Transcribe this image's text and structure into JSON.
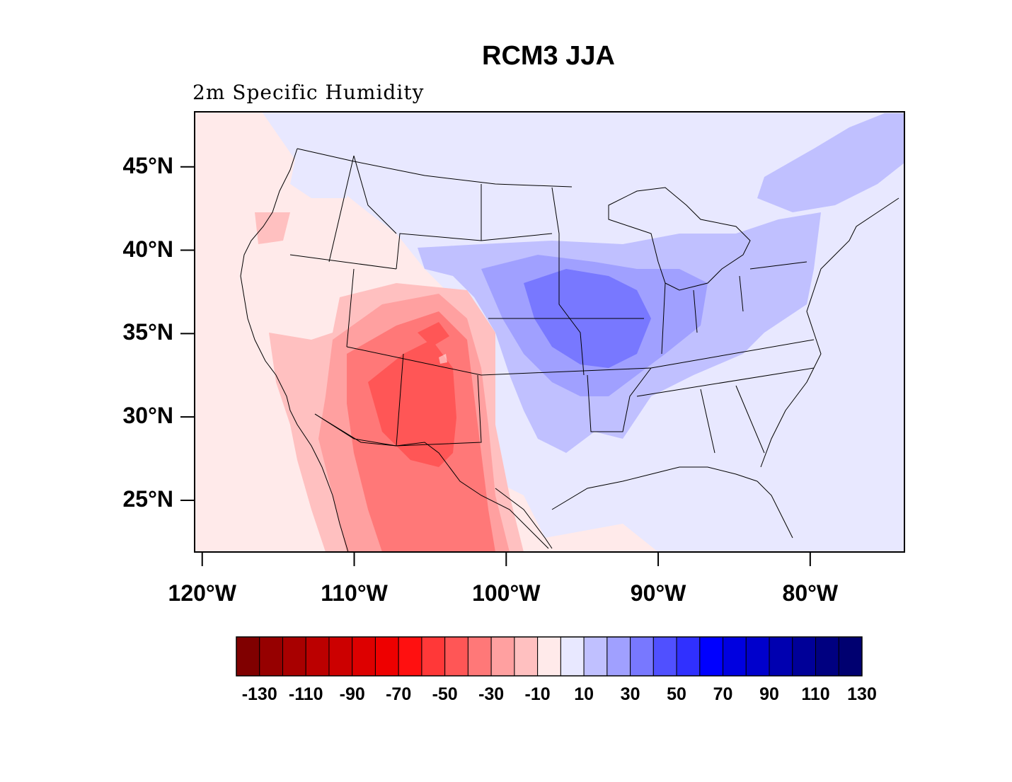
{
  "title": "RCM3 JJA",
  "subtitle": "2m Specific Humidity",
  "map": {
    "lat_ticks": [
      "45°N",
      "40°N",
      "35°N",
      "30°N",
      "25°N"
    ],
    "lon_ticks": [
      "120°W",
      "110°W",
      "100°W",
      "90°W",
      "80°W"
    ],
    "lat_values": [
      45,
      40,
      35,
      30,
      25
    ],
    "lon_values": [
      -120,
      -110,
      -100,
      -90,
      -80
    ],
    "lat_range": [
      21.9,
      48.3
    ],
    "lon_range": [
      -120.5,
      -73.8
    ],
    "projection": "lambert-conformal-like",
    "region": "Contiguous United States",
    "field": "2m Specific Humidity difference, JJA",
    "pattern": {
      "negative_center": "Southwest US (Arizona, New Mexico, west Texas, northern Mexico)",
      "positive_center": "Central Plains / Midwest (Kansas, Missouri, Iowa, Illinois)"
    }
  },
  "colorbar": {
    "labels": [
      "-130",
      "-110",
      "-90",
      "-70",
      "-50",
      "-30",
      "-10",
      "10",
      "30",
      "50",
      "70",
      "90",
      "110",
      "130"
    ],
    "levels": [
      -130,
      -120,
      -110,
      -100,
      -90,
      -80,
      -70,
      -60,
      -50,
      -40,
      -30,
      -20,
      -10,
      0,
      10,
      20,
      30,
      40,
      50,
      60,
      70,
      80,
      90,
      100,
      110,
      120,
      130
    ],
    "colors": [
      "#800000",
      "#960000",
      "#a80000",
      "#bb0000",
      "#cc0000",
      "#dd0000",
      "#ee0000",
      "#ff1010",
      "#ff3838",
      "#ff5656",
      "#ff7878",
      "#ffa0a0",
      "#ffc0c0",
      "#ffeaea",
      "#e8e8ff",
      "#c0c0ff",
      "#a0a0ff",
      "#7878ff",
      "#5050ff",
      "#3030ff",
      "#0000ff",
      "#0000e0",
      "#0000cc",
      "#0000b0",
      "#000098",
      "#000080",
      "#000070"
    ]
  }
}
